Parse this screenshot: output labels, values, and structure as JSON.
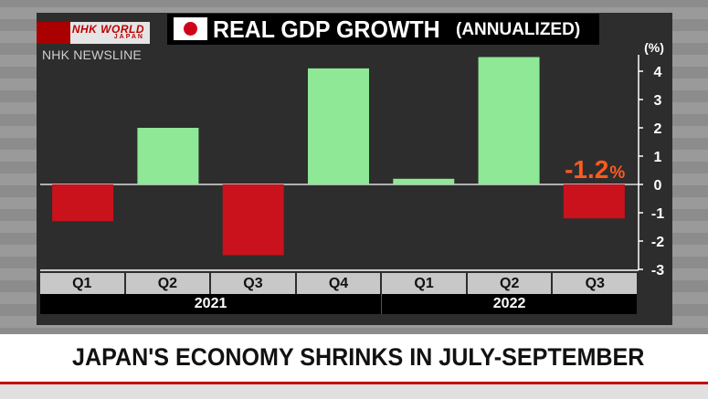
{
  "branding": {
    "logo_main": "NHK WORLD",
    "logo_sub": "JAPAN",
    "program": "NHK NEWSLINE"
  },
  "title": {
    "main": "REAL GDP GROWTH",
    "sub": "(ANNUALIZED)"
  },
  "headline": "JAPAN'S ECONOMY SHRINKS IN JULY-SEPTEMBER",
  "colors": {
    "positive": "#8ee895",
    "negative": "#c9121c",
    "callout": "#ff5a1f"
  },
  "chart_data": {
    "type": "bar",
    "title": "REAL GDP GROWTH (ANNUALIZED)",
    "unit_label": "(%)",
    "categories": [
      "Q1",
      "Q2",
      "Q3",
      "Q4",
      "Q1",
      "Q2",
      "Q3"
    ],
    "groups": [
      {
        "label": "2021",
        "span": 4
      },
      {
        "label": "2022",
        "span": 3
      }
    ],
    "values": [
      -1.3,
      2.0,
      -2.5,
      4.1,
      0.2,
      4.5,
      -1.2
    ],
    "ylim": [
      -3,
      4.5
    ],
    "yticks": [
      4,
      3,
      2,
      1,
      0,
      -1,
      -2,
      -3
    ],
    "callout": {
      "index": 6,
      "value": "-1.2",
      "unit": "%"
    }
  }
}
